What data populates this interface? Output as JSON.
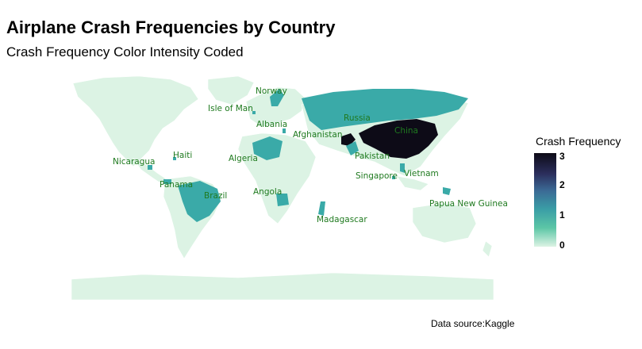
{
  "title": "Airplane Crash Frequencies by Country",
  "subtitle": "Crash Frequency Color Intensity Coded",
  "caption": "Data source:Kaggle",
  "legend": {
    "title": "Crash Frequency",
    "ticks": [
      "3",
      "2",
      "1",
      "0"
    ],
    "range": [
      0,
      3
    ],
    "colors": {
      "low": "#dcf3e4",
      "mid": "#3a9ea6",
      "high": "#0d0b17"
    }
  },
  "countries": [
    {
      "name": "Norway",
      "frequency": 1
    },
    {
      "name": "Isle of Man",
      "frequency": 1
    },
    {
      "name": "Russia",
      "frequency": 1
    },
    {
      "name": "Albania",
      "frequency": 1
    },
    {
      "name": "China",
      "frequency": 3
    },
    {
      "name": "Afghanistan",
      "frequency": 3
    },
    {
      "name": "Haiti",
      "frequency": 1
    },
    {
      "name": "Algeria",
      "frequency": 1
    },
    {
      "name": "Pakistan",
      "frequency": 1
    },
    {
      "name": "Nicaragua",
      "frequency": 1
    },
    {
      "name": "Singapore",
      "frequency": 1
    },
    {
      "name": "Vietnam",
      "frequency": 1
    },
    {
      "name": "Panama",
      "frequency": 1
    },
    {
      "name": "Brazil",
      "frequency": 1
    },
    {
      "name": "Angola",
      "frequency": 1
    },
    {
      "name": "Papua New Guinea",
      "frequency": 1
    },
    {
      "name": "Madagascar",
      "frequency": 1
    }
  ]
}
